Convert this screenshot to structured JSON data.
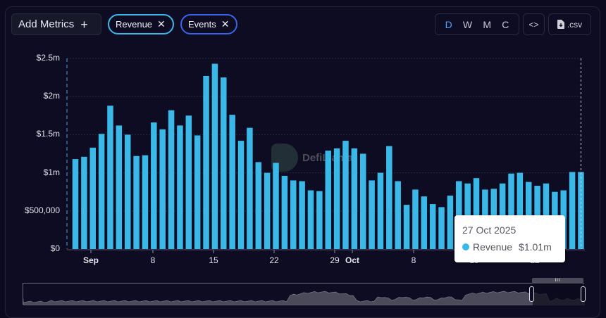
{
  "toolbar": {
    "add_metrics_label": "Add Metrics",
    "add_metrics_icon": "plus-icon",
    "metrics": [
      {
        "label": "Revenue",
        "color": "#3ab8e8",
        "remove_icon": "close-icon"
      },
      {
        "label": "Events",
        "color": "#3a64e8",
        "remove_icon": "close-icon"
      }
    ],
    "periods": [
      "D",
      "W",
      "M",
      "C"
    ],
    "active_period": "D",
    "embed_label": "<>",
    "csv_label": ".csv",
    "csv_icon": "file-download-icon"
  },
  "watermark": {
    "text": "DefiLlama"
  },
  "tooltip": {
    "date": "27 Oct 2025",
    "series": "Revenue",
    "value": "$1.01m",
    "color": "#3ab8e8"
  },
  "chart_data": {
    "type": "bar",
    "title": "",
    "xlabel": "",
    "ylabel": "",
    "ylim": [
      0,
      2500000
    ],
    "y_ticks": [
      "$0",
      "$500,000",
      "$1m",
      "$1.5m",
      "$2m",
      "$2.5m"
    ],
    "x_ticks": [
      "Sep",
      "8",
      "15",
      "22",
      "29",
      "Oct",
      "8",
      "15",
      "22"
    ],
    "grid": true,
    "legend": "none",
    "bar_color": "#3ab8e8",
    "categories": [
      "Aug 30",
      "Aug 31",
      "Sep 1",
      "Sep 2",
      "Sep 3",
      "Sep 4",
      "Sep 5",
      "Sep 6",
      "Sep 7",
      "Sep 8",
      "Sep 9",
      "Sep 10",
      "Sep 11",
      "Sep 12",
      "Sep 13",
      "Sep 14",
      "Sep 15",
      "Sep 16",
      "Sep 17",
      "Sep 18",
      "Sep 19",
      "Sep 20",
      "Sep 21",
      "Sep 22",
      "Sep 23",
      "Sep 24",
      "Sep 25",
      "Sep 26",
      "Sep 27",
      "Sep 28",
      "Sep 29",
      "Sep 30",
      "Oct 1",
      "Oct 2",
      "Oct 3",
      "Oct 4",
      "Oct 5",
      "Oct 6",
      "Oct 7",
      "Oct 8",
      "Oct 9",
      "Oct 10",
      "Oct 11",
      "Oct 12",
      "Oct 13",
      "Oct 14",
      "Oct 15",
      "Oct 16",
      "Oct 17",
      "Oct 18",
      "Oct 19",
      "Oct 20",
      "Oct 21",
      "Oct 22",
      "Oct 23",
      "Oct 24",
      "Oct 25",
      "Oct 26",
      "Oct 27"
    ],
    "series": [
      {
        "name": "Revenue",
        "values": [
          1180000,
          1210000,
          1330000,
          1510000,
          1880000,
          1620000,
          1500000,
          1220000,
          1230000,
          1660000,
          1570000,
          1820000,
          1620000,
          1750000,
          1490000,
          2270000,
          2430000,
          2250000,
          1760000,
          1420000,
          1590000,
          1140000,
          1000000,
          1130000,
          960000,
          900000,
          890000,
          770000,
          760000,
          1290000,
          1320000,
          1420000,
          1320000,
          1250000,
          900000,
          1000000,
          1350000,
          890000,
          580000,
          780000,
          690000,
          590000,
          550000,
          700000,
          890000,
          860000,
          930000,
          780000,
          790000,
          860000,
          990000,
          1000000,
          880000,
          830000,
          860000,
          750000,
          770000,
          1010000,
          1010000
        ]
      }
    ],
    "highlighted": {
      "category": "Oct 27",
      "value": 1010000,
      "label": "$1.01m"
    }
  }
}
